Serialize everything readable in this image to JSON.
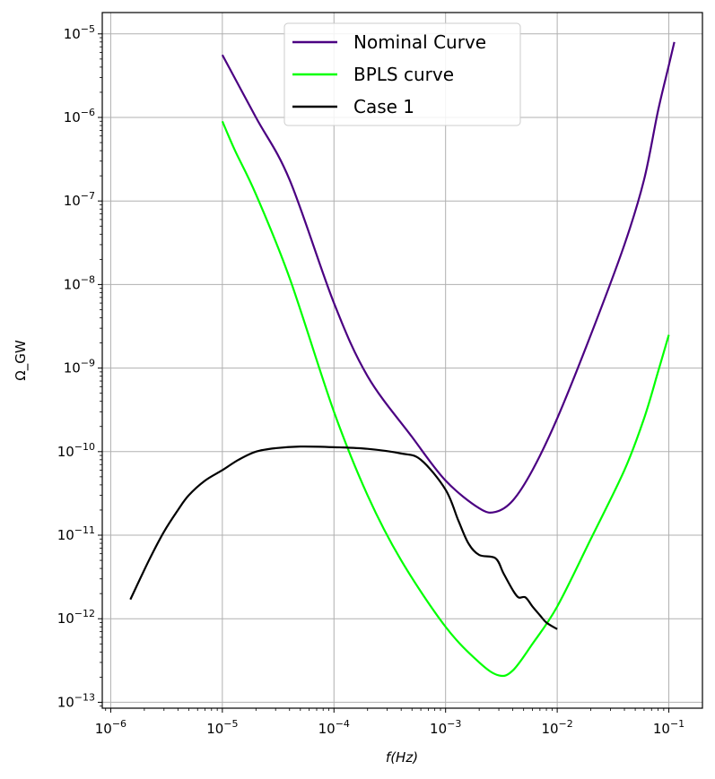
{
  "chart_data": {
    "type": "line",
    "xlabel": "f(Hz)",
    "ylabel": "Ω_GW",
    "xscale": "log",
    "yscale": "log",
    "xlim": [
      8.4e-07,
      0.2
    ],
    "ylim": [
      8.5e-14,
      1.8e-05
    ],
    "grid": true,
    "legend_position": "top-center",
    "x_ticks": [
      {
        "value": 1e-06,
        "base": "10",
        "exp": "−6"
      },
      {
        "value": 1e-05,
        "base": "10",
        "exp": "−5"
      },
      {
        "value": 0.0001,
        "base": "10",
        "exp": "−4"
      },
      {
        "value": 0.001,
        "base": "10",
        "exp": "−3"
      },
      {
        "value": 0.01,
        "base": "10",
        "exp": "−2"
      },
      {
        "value": 0.1,
        "base": "10",
        "exp": "−1"
      }
    ],
    "y_ticks": [
      {
        "value": 1e-13,
        "base": "10",
        "exp": "−13"
      },
      {
        "value": 1e-12,
        "base": "10",
        "exp": "−12"
      },
      {
        "value": 1e-11,
        "base": "10",
        "exp": "−11"
      },
      {
        "value": 1e-10,
        "base": "10",
        "exp": "−10"
      },
      {
        "value": 1e-09,
        "base": "10",
        "exp": "−9"
      },
      {
        "value": 1e-08,
        "base": "10",
        "exp": "−8"
      },
      {
        "value": 1e-07,
        "base": "10",
        "exp": "−7"
      },
      {
        "value": 1e-06,
        "base": "10",
        "exp": "−6"
      },
      {
        "value": 1e-05,
        "base": "10",
        "exp": "−5"
      }
    ],
    "series": [
      {
        "name": "Nominal Curve",
        "color": "#4b0082",
        "points": [
          [
            1e-05,
            5.6e-06
          ],
          [
            2e-05,
            1e-06
          ],
          [
            4e-05,
            1.8e-07
          ],
          [
            0.0001,
            6e-09
          ],
          [
            0.0002,
            8e-10
          ],
          [
            0.0005,
            1.5e-10
          ],
          [
            0.001,
            4.5e-11
          ],
          [
            0.002,
            2.1e-11
          ],
          [
            0.0028,
            1.9e-11
          ],
          [
            0.004,
            2.6e-11
          ],
          [
            0.006,
            6e-11
          ],
          [
            0.01,
            2.5e-10
          ],
          [
            0.02,
            2.5e-09
          ],
          [
            0.04,
            3e-08
          ],
          [
            0.06,
            1.8e-07
          ],
          [
            0.08,
            1.2e-06
          ],
          [
            0.1,
            4.2e-06
          ],
          [
            0.112,
            8e-06
          ]
        ]
      },
      {
        "name": "BPLS curve",
        "color": "#00ff00",
        "points": [
          [
            1e-05,
            9e-07
          ],
          [
            1.3e-05,
            4e-07
          ],
          [
            2e-05,
            1.2e-07
          ],
          [
            4e-05,
            1.2e-08
          ],
          [
            0.0001,
            3e-10
          ],
          [
            0.0002,
            3e-11
          ],
          [
            0.0004,
            5e-12
          ],
          [
            0.001,
            8e-13
          ],
          [
            0.002,
            3e-13
          ],
          [
            0.003,
            2.1e-13
          ],
          [
            0.004,
            2.4e-13
          ],
          [
            0.006,
            5e-13
          ],
          [
            0.01,
            1.4e-12
          ],
          [
            0.02,
            9e-12
          ],
          [
            0.04,
            6e-11
          ],
          [
            0.06,
            2.5e-10
          ],
          [
            0.08,
            9e-10
          ],
          [
            0.1,
            2.5e-09
          ]
        ]
      },
      {
        "name": "Case 1",
        "color": "#000000",
        "points": [
          [
            1.5e-06,
            1.7e-12
          ],
          [
            2.2e-06,
            5e-12
          ],
          [
            3e-06,
            1.1e-11
          ],
          [
            4e-06,
            2e-11
          ],
          [
            5e-06,
            3e-11
          ],
          [
            7e-06,
            4.5e-11
          ],
          [
            1e-05,
            6e-11
          ],
          [
            1.4e-05,
            8e-11
          ],
          [
            2e-05,
            1e-10
          ],
          [
            3e-05,
            1.1e-10
          ],
          [
            5e-05,
            1.15e-10
          ],
          [
            0.0001,
            1.13e-10
          ],
          [
            0.0002,
            1.08e-10
          ],
          [
            0.0004,
            9.5e-11
          ],
          [
            0.0006,
            8e-11
          ],
          [
            0.001,
            3.5e-11
          ],
          [
            0.0013,
            1.5e-11
          ],
          [
            0.0016,
            8e-12
          ],
          [
            0.002,
            5.8e-12
          ],
          [
            0.0028,
            5.3e-12
          ],
          [
            0.0033,
            3.5e-12
          ],
          [
            0.004,
            2.2e-12
          ],
          [
            0.0045,
            1.8e-12
          ],
          [
            0.0052,
            1.8e-12
          ],
          [
            0.006,
            1.4e-12
          ],
          [
            0.007,
            1.1e-12
          ],
          [
            0.008,
            9e-13
          ],
          [
            0.01,
            7.5e-13
          ]
        ]
      }
    ]
  }
}
